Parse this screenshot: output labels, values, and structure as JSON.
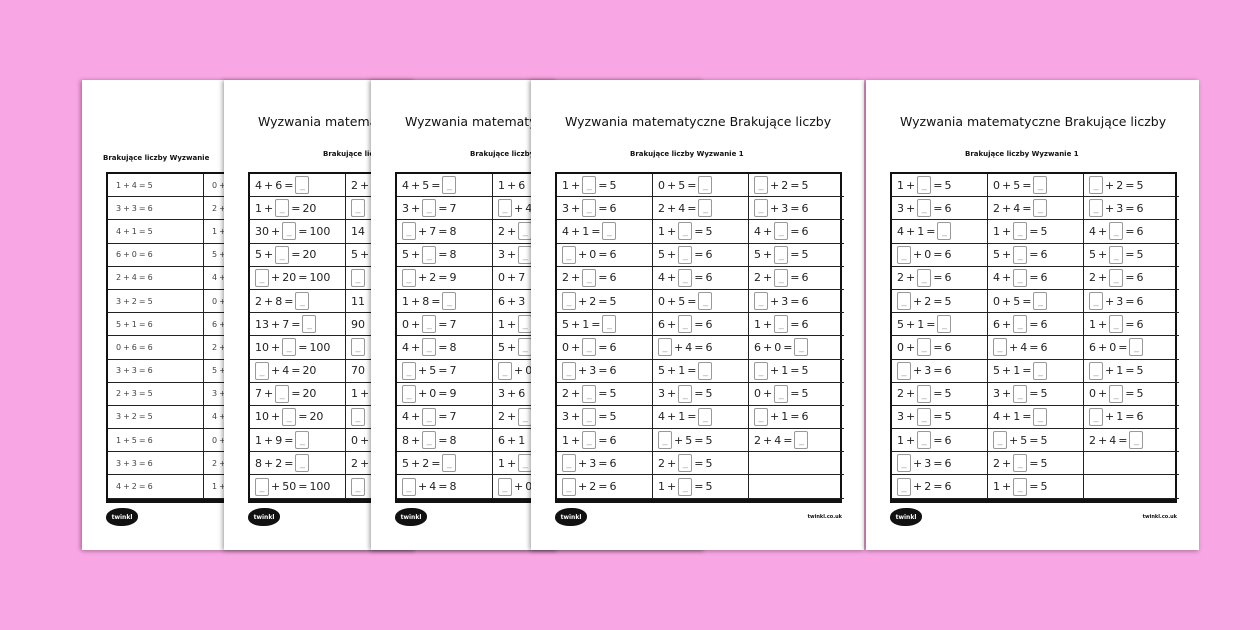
{
  "background_color": "#f9a6e4",
  "logo_text": "twinkl",
  "url_text": "twinkl.co.uk",
  "sheets": [
    {
      "title": "",
      "subtitle": "Brakujące liczby Wyzwanie",
      "columns": [
        [
          "1 + 4 = 5",
          "3 + 3 = 6",
          "4 + 1 = 5",
          "6 + 0 = 6",
          "2 + 4 = 6",
          "3 + 2 = 5",
          "5 + 1 = 6",
          "0 + 6 = 6",
          "3 + 3 = 6",
          "2 + 3 = 5",
          "3 + 2 = 5",
          "1 + 5 = 6",
          "3 + 3 = 6",
          "4 + 2 = 6"
        ],
        [
          "0 +",
          "2 +",
          "1 +",
          "5 +",
          "4 +",
          "0 +",
          "6 +",
          "2 +",
          "5 +",
          "3 +",
          "4 +",
          "0 +",
          "2 +",
          "1 +"
        ],
        []
      ]
    },
    {
      "title": "Wyzwania matematyczne Brakujące liczby",
      "subtitle": "Brakujące liczby Wyzwanie",
      "columns": [
        [
          "4 + 6 = _",
          "1 + _ = 20",
          "30 + _ = 100",
          "5 + _ = 20",
          "_ + 20 = 100",
          "2 + 8 = _",
          "13 + 7 = _",
          "10 + _ = 100",
          "_ + 4 = 20",
          "7 + _ = 20",
          "10 + _ = 20",
          "1 + 9 = _",
          "8 + 2 = _",
          "_ + 50 = 100"
        ],
        [
          "2 +",
          "_",
          "14",
          "5 +",
          "_",
          "11",
          "90",
          "_",
          "70",
          "1 +",
          "_",
          "0 +",
          "2 +",
          "_"
        ],
        []
      ]
    },
    {
      "title": "Wyzwania matematyczne Brakujące liczby",
      "subtitle": "Brakujące liczby Wyzwanie",
      "columns": [
        [
          "4 + 5 = _",
          "3 + _ = 7",
          "_ + 7 = 8",
          "5 + _ = 8",
          "_ + 2 = 9",
          "1 + 8 = _",
          "0 + _ = 7",
          "4 + _ = 8",
          "_ + 5 = 7",
          "_ + 0 = 9",
          "4 + _ = 7",
          "8 + _ = 8",
          "5 + 2 = _",
          "_ + 4 = 8"
        ],
        [
          "1 + 6",
          "_ + 4",
          "2 + _",
          "3 + _",
          "0 + 7",
          "6 + 3",
          "1 + _",
          "5 + _",
          "_ + 0",
          "3 + 6",
          "2 + _",
          "6 + 1",
          "1 + _",
          "_ + 0"
        ],
        []
      ]
    },
    {
      "title": "Wyzwania matematyczne Brakujące liczby",
      "subtitle": "Brakujące liczby Wyzwanie 1",
      "columns": [
        [
          "1 + _ = 5",
          "3 + _ = 6",
          "4 + 1 = _",
          "_ + 0 = 6",
          "2 + _ = 6",
          "_ + 2 = 5",
          "5 + 1 = _",
          "0 + _ = 6",
          "_ + 3 = 6",
          "2 + _ = 5",
          "3 + _ = 5",
          "1 + _ = 6",
          "_ + 3 = 6",
          "_ + 2 = 6"
        ],
        [
          "0 + 5 = _",
          "2 + 4 = _",
          "1 + _ = 5",
          "5 + _ = 6",
          "4 + _ = 6",
          "0 + 5 = _",
          "6 + _ = 6",
          "_ + 4 = 6",
          "5 + 1 = _",
          "3 + _ = 5",
          "4 + 1 = _",
          "_ + 5 = 5",
          "2 + _ = 5",
          "1 + _ = 5"
        ],
        [
          "_ + 2 = 5",
          "_ + 3 = 6",
          "4 + _ = 6",
          "5 + _ = 5",
          "2 + _ = 6",
          "_ + 3 = 6",
          "1 + _ = 6",
          "6 + 0 = _",
          "_ + 1 = 5",
          "0 + _ = 5",
          "_ + 1 = 6",
          "2 + 4 = _",
          "",
          ""
        ]
      ]
    },
    {
      "title": "Wyzwania matematyczne Brakujące liczby",
      "subtitle": "Brakujące liczby Wyzwanie 1",
      "columns": [
        [
          "1 + _ = 5",
          "3 + _ = 6",
          "4 + 1 = _",
          "_ + 0 = 6",
          "2 + _ = 6",
          "_ + 2 = 5",
          "5 + 1 = _",
          "0 + _ = 6",
          "_ + 3 = 6",
          "2 + _ = 5",
          "3 + _ = 5",
          "1 + _ = 6",
          "_ + 3 = 6",
          "_ + 2 = 6"
        ],
        [
          "0 + 5 = _",
          "2 + 4 = _",
          "1 + _ = 5",
          "5 + _ = 6",
          "4 + _ = 6",
          "0 + 5 = _",
          "6 + _ = 6",
          "_ + 4 = 6",
          "5 + 1 = _",
          "3 + _ = 5",
          "4 + 1 = _",
          "_ + 5 = 5",
          "2 + _ = 5",
          "1 + _ = 5"
        ],
        [
          "_ + 2 = 5",
          "_ + 3 = 6",
          "4 + _ = 6",
          "5 + _ = 5",
          "2 + _ = 6",
          "_ + 3 = 6",
          "1 + _ = 6",
          "6 + 0 = _",
          "_ + 1 = 5",
          "0 + _ = 5",
          "_ + 1 = 6",
          "2 + 4 = _",
          "",
          ""
        ]
      ]
    }
  ]
}
